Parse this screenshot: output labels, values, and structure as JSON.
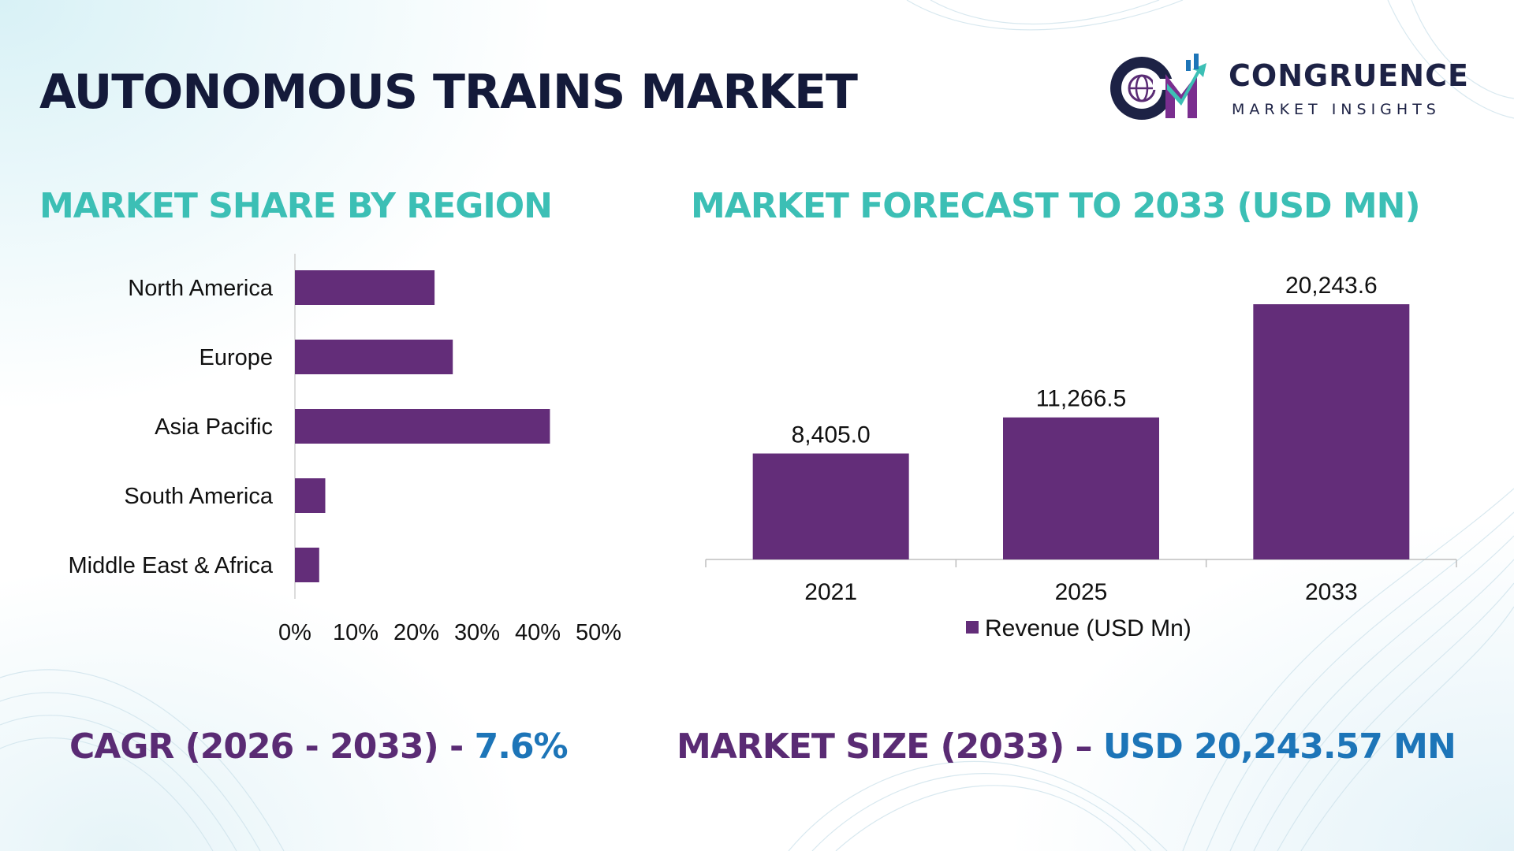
{
  "header": {
    "title": "AUTONOMOUS TRAINS MARKET"
  },
  "logo": {
    "name": "CONGRUENCE",
    "tagline": "MARKET INSIGHTS",
    "icon": "cm-globe-logo-icon"
  },
  "sections": {
    "region_title": "MARKET SHARE BY REGION",
    "forecast_title": "MARKET FORECAST TO 2033 (USD MN)"
  },
  "footer": {
    "cagr_label": "CAGR (2026 - 2033) - ",
    "cagr_value": "7.6%",
    "size_label": "MARKET SIZE (2033) – ",
    "size_value": "USD 20,243.57 MN"
  },
  "colors": {
    "bar": "#632d79",
    "title": "#141a3a",
    "section_title": "#3cbfb5",
    "footer_label": "#5a2b74",
    "footer_value": "#1d75b8"
  },
  "chart_data": [
    {
      "type": "bar",
      "orientation": "horizontal",
      "title": "MARKET SHARE BY REGION",
      "categories": [
        "North America",
        "Europe",
        "Asia Pacific",
        "South America",
        "Middle East & Africa"
      ],
      "values": [
        23,
        26,
        42,
        5,
        4
      ],
      "xlim": [
        0,
        50
      ],
      "x_ticks": [
        "0%",
        "10%",
        "20%",
        "30%",
        "40%",
        "50%"
      ],
      "grid": false,
      "legend": "none"
    },
    {
      "type": "bar",
      "title": "MARKET FORECAST TO 2033 (USD MN)",
      "categories": [
        "2021",
        "2025",
        "2033"
      ],
      "series": [
        {
          "name": "Revenue (USD Mn)",
          "values": [
            8405.0,
            11266.5,
            20243.6
          ],
          "labels": [
            "8,405.0",
            "11,266.5",
            "20,243.6"
          ]
        }
      ],
      "ylim": [
        0,
        22000
      ],
      "grid": false,
      "legend": "bottom"
    }
  ]
}
